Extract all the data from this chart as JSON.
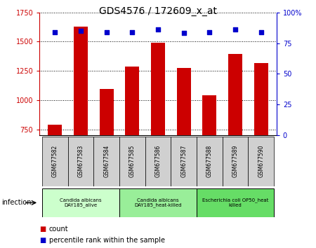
{
  "title": "GDS4576 / 172609_x_at",
  "samples": [
    "GSM677582",
    "GSM677583",
    "GSM677584",
    "GSM677585",
    "GSM677586",
    "GSM677587",
    "GSM677588",
    "GSM677589",
    "GSM677590"
  ],
  "counts": [
    790,
    1630,
    1095,
    1285,
    1490,
    1275,
    1040,
    1395,
    1315
  ],
  "percentiles": [
    84,
    85,
    84,
    84,
    86,
    83,
    84,
    86,
    84
  ],
  "ylim_left": [
    700,
    1750
  ],
  "ylim_right": [
    0,
    100
  ],
  "yticks_left": [
    750,
    1000,
    1250,
    1500,
    1750
  ],
  "yticks_right": [
    0,
    25,
    50,
    75,
    100
  ],
  "ytick_labels_right": [
    "0",
    "25",
    "50",
    "75",
    "100%"
  ],
  "bar_color": "#cc0000",
  "dot_color": "#0000cc",
  "grid_color": "#000000",
  "groups": [
    {
      "label": "Candida albicans\nDAY185_alive",
      "start": 0,
      "end": 3,
      "color": "#ccffcc"
    },
    {
      "label": "Candida albicans\nDAY185_heat-killed",
      "start": 3,
      "end": 6,
      "color": "#99ee99"
    },
    {
      "label": "Escherichia coli OP50_heat\nkilled",
      "start": 6,
      "end": 9,
      "color": "#66dd66"
    }
  ],
  "group_label": "infection",
  "legend_items": [
    {
      "color": "#cc0000",
      "label": "count"
    },
    {
      "color": "#0000cc",
      "label": "percentile rank within the sample"
    }
  ],
  "bar_width": 0.55,
  "sample_box_color": "#d0d0d0",
  "title_fontsize": 10,
  "tick_fontsize": 7,
  "sample_fontsize": 5.5,
  "group_fontsize": 5,
  "legend_fontsize": 7
}
